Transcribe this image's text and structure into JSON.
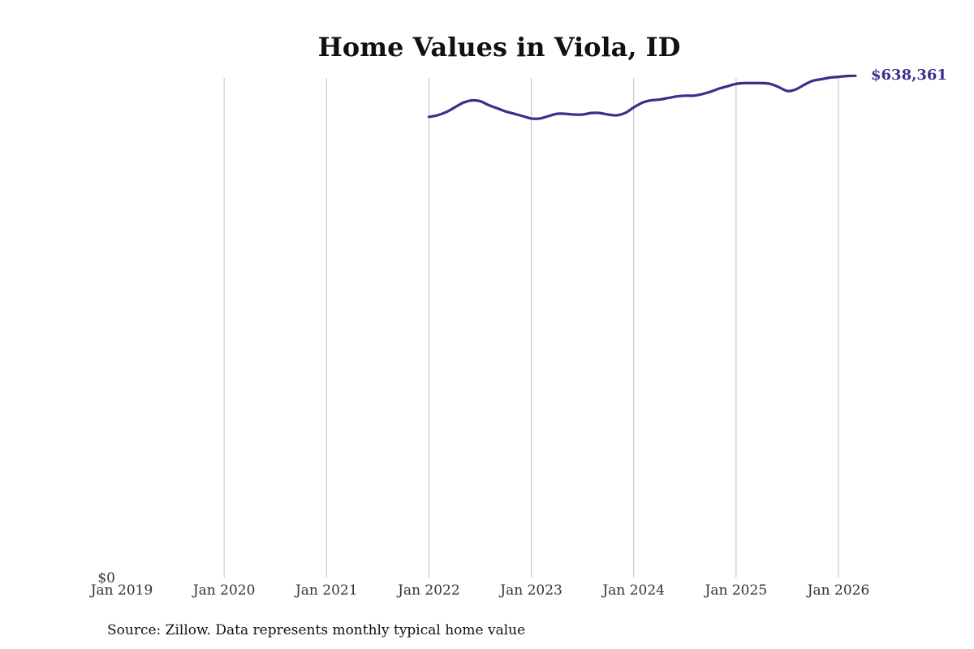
{
  "colors": {
    "line": "#3b2f8a",
    "grid": "#bdbdbd"
  },
  "chart_data": {
    "type": "line",
    "title": "Home Values in Viola, ID",
    "xlabel": "",
    "ylabel": "",
    "source": "Source: Zillow. Data represents monthly typical home value",
    "grid": {
      "vertical": true,
      "horizontal": false
    },
    "xlim": [
      "2019-01",
      "2026-05"
    ],
    "ylim": [
      0,
      650000
    ],
    "x_ticks": [
      {
        "date": "2019-01",
        "label": "Jan 2019"
      },
      {
        "date": "2020-01",
        "label": "Jan 2020"
      },
      {
        "date": "2021-01",
        "label": "Jan 2021"
      },
      {
        "date": "2022-01",
        "label": "Jan 2022"
      },
      {
        "date": "2023-01",
        "label": "Jan 2023"
      },
      {
        "date": "2024-01",
        "label": "Jan 2024"
      },
      {
        "date": "2025-01",
        "label": "Jan 2025"
      },
      {
        "date": "2026-01",
        "label": "Jan 2026"
      }
    ],
    "y_ticks": [
      {
        "value": 0,
        "label": "$0"
      }
    ],
    "end_label": "$638,361",
    "series": [
      {
        "x": [
          "2022-01",
          "2022-02",
          "2022-03",
          "2022-04",
          "2022-05",
          "2022-06",
          "2022-07",
          "2022-08",
          "2022-09",
          "2022-10",
          "2022-11",
          "2022-12",
          "2023-01",
          "2023-02",
          "2023-03",
          "2023-04",
          "2023-05",
          "2023-06",
          "2023-07",
          "2023-08",
          "2023-09",
          "2023-10",
          "2023-11",
          "2023-12",
          "2024-01",
          "2024-02",
          "2024-03",
          "2024-04",
          "2024-05",
          "2024-06",
          "2024-07",
          "2024-08",
          "2024-09",
          "2024-10",
          "2024-11",
          "2024-12",
          "2025-01",
          "2025-02",
          "2025-03",
          "2025-04",
          "2025-05",
          "2025-06",
          "2025-07",
          "2025-08",
          "2025-09",
          "2025-10",
          "2025-11",
          "2025-12",
          "2026-01",
          "2026-02",
          "2026-03"
        ],
        "values": [
          586000,
          588000,
          592000,
          598000,
          604000,
          607000,
          606000,
          601000,
          597000,
          593000,
          590000,
          587000,
          584000,
          584000,
          587000,
          590000,
          590000,
          589000,
          589000,
          591000,
          591000,
          589000,
          588000,
          591000,
          598000,
          604000,
          607000,
          608000,
          610000,
          612000,
          613000,
          613000,
          615000,
          618000,
          622000,
          625000,
          628000,
          629000,
          629000,
          629000,
          628000,
          624000,
          619000,
          621000,
          627000,
          632000,
          634000,
          636000,
          637000,
          638000,
          638361
        ]
      }
    ]
  }
}
